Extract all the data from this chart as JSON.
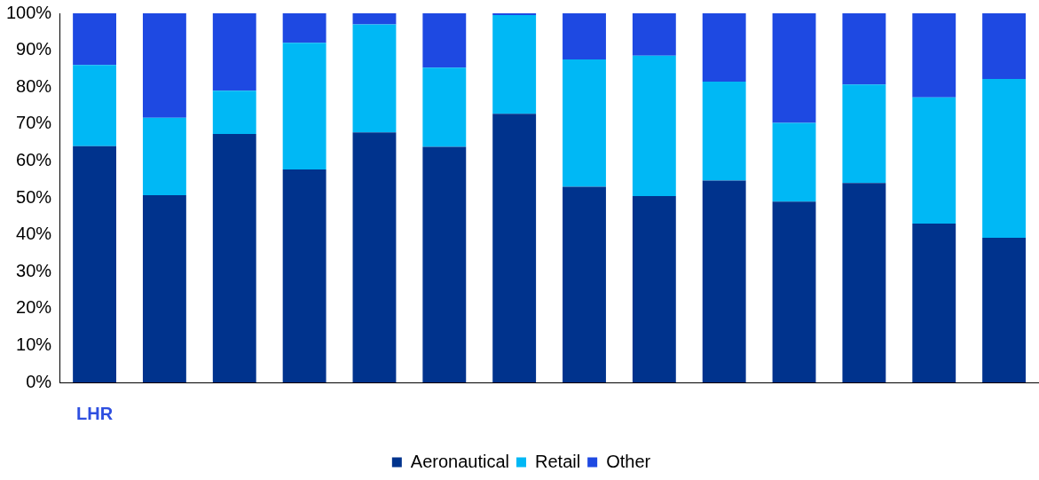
{
  "chart_data": {
    "type": "bar",
    "stacked": true,
    "categories": [
      "LHR",
      null,
      null,
      null,
      null,
      null,
      null,
      null,
      null,
      null,
      null,
      null,
      null,
      null
    ],
    "series": [
      {
        "name": "Aeronautical",
        "color": "#00338d",
        "values": [
          64,
          50.7,
          67.3,
          57.7,
          67.7,
          63.8,
          72.8,
          53,
          50.5,
          54.7,
          49,
          54,
          43,
          39.2
        ]
      },
      {
        "name": "Retail",
        "color": "#00b8f5",
        "values": [
          22,
          21,
          11.7,
          34.3,
          29.3,
          21.5,
          26.7,
          34.5,
          38,
          26.8,
          21.3,
          26.7,
          34.2,
          43
        ]
      },
      {
        "name": "Other",
        "color": "#1e49e2",
        "values": [
          14,
          28.3,
          21,
          8,
          3,
          14.7,
          0.5,
          12.5,
          11.5,
          18.5,
          29.7,
          19.3,
          22.8,
          17.8
        ]
      }
    ],
    "ylim": [
      0,
      100
    ],
    "yticks": [
      {
        "value": 0,
        "label": "0%"
      },
      {
        "value": 10,
        "label": "10%"
      },
      {
        "value": 20,
        "label": "20%"
      },
      {
        "value": 30,
        "label": "30%"
      },
      {
        "value": 40,
        "label": "40%"
      },
      {
        "value": 50,
        "label": "50%"
      },
      {
        "value": 60,
        "label": "60%"
      },
      {
        "value": 70,
        "label": "70%"
      },
      {
        "value": 80,
        "label": "80%"
      },
      {
        "value": 90,
        "label": "90%"
      },
      {
        "value": 100,
        "label": "100%"
      }
    ],
    "grid": false,
    "legend": "bottom"
  }
}
